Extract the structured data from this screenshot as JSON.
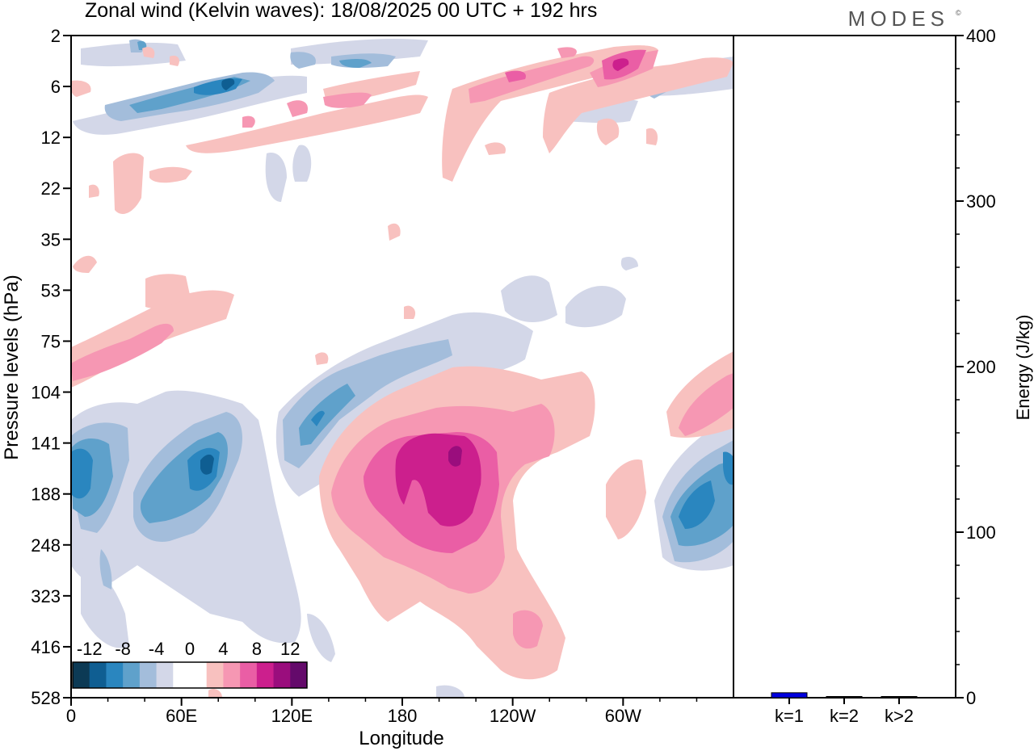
{
  "title": "Zonal wind (Kelvin waves):  18/08/2025  00 UTC  + 192 hrs",
  "logo": "MODES",
  "chart_data": [
    {
      "type": "heatmap",
      "description_source": "Longitude-pressure contour plot of zonal wind",
      "xlabel": "Longitude",
      "ylabel": "Pressure levels (hPa)",
      "x_ticks": [
        {
          "lon": 0,
          "label": "0"
        },
        {
          "lon": 60,
          "label": "60E"
        },
        {
          "lon": 120,
          "label": "120E"
        },
        {
          "lon": 180,
          "label": "180"
        },
        {
          "lon": 240,
          "label": "120W"
        },
        {
          "lon": 300,
          "label": "60W"
        }
      ],
      "xlim": [
        0,
        360
      ],
      "y_levels": [
        "2",
        "6",
        "12",
        "22",
        "35",
        "53",
        "75",
        "104",
        "141",
        "188",
        "248",
        "323",
        "416",
        "528"
      ],
      "colorbar": {
        "labels": [
          "-12",
          "-8",
          "-4",
          "0",
          "4",
          "8",
          "12"
        ],
        "colors": [
          "#0c3a55",
          "#0f5e92",
          "#2a86bf",
          "#5fa1cb",
          "#a3bddb",
          "#d3d7e8",
          "#ffffff",
          "#ffffff",
          "#f8c1bf",
          "#f697b3",
          "#ea5ea5",
          "#cc1f8d",
          "#9a0d7d",
          "#640a6b"
        ]
      },
      "features": [
        {
          "sign": "positive",
          "lon": 195,
          "level": "141-188",
          "peak": 10
        },
        {
          "sign": "negative",
          "lon": 70,
          "level": "141",
          "peak": -10
        },
        {
          "sign": "negative",
          "lon": 0,
          "level": "141-188",
          "peak": -8
        },
        {
          "sign": "negative",
          "lon": 345,
          "level": "188",
          "peak": -10
        },
        {
          "sign": "negative",
          "lon": 115,
          "level": "104-141",
          "peak": -8
        },
        {
          "sign": "positive",
          "lon": 10,
          "level": "75-104",
          "peak": 6
        },
        {
          "sign": "positive",
          "lon": 355,
          "level": "104-141",
          "peak": 6
        },
        {
          "sign": "positive",
          "lon": 290,
          "level": "6",
          "peak": 8
        },
        {
          "sign": "negative",
          "lon": 80,
          "level": "6",
          "peak": -8
        }
      ]
    },
    {
      "type": "bar",
      "categories": [
        "k=1",
        "k=2",
        "k>2"
      ],
      "values": [
        3,
        0.3,
        0.5
      ],
      "ylabel": "Energy (J/kg)",
      "ylim": [
        0,
        400
      ],
      "y_ticks": [
        0,
        100,
        200,
        300,
        400
      ],
      "colors": [
        "#0000e0",
        "#000000",
        "#000000"
      ]
    }
  ]
}
